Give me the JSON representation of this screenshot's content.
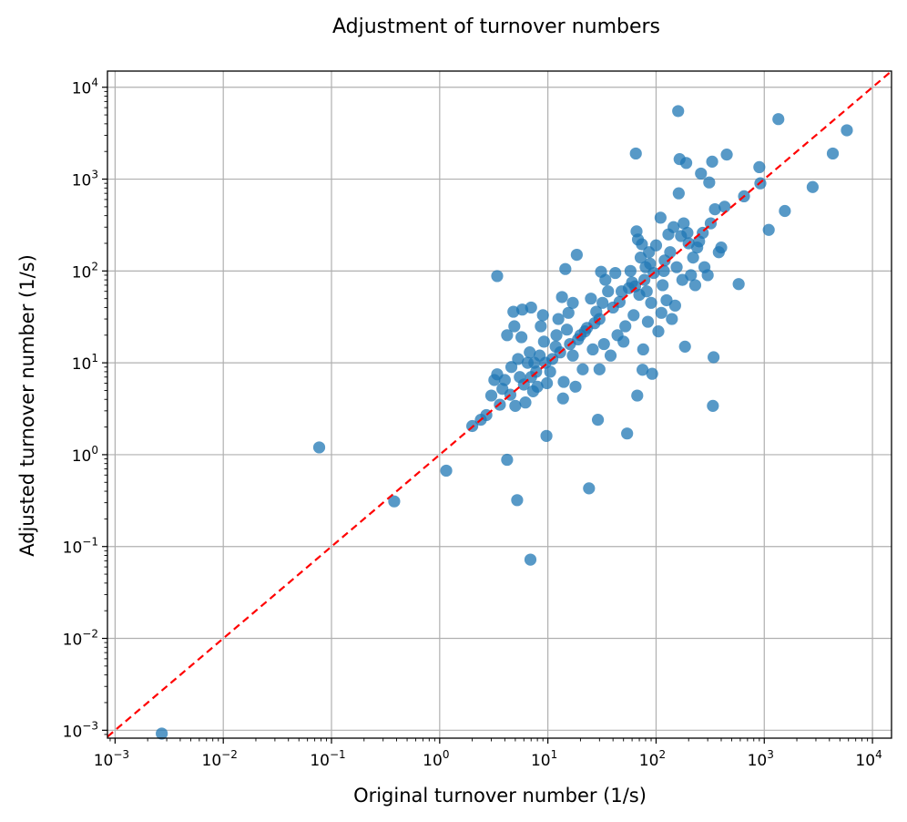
{
  "chart_data": {
    "type": "scatter",
    "title": "Adjustment of turnover numbers",
    "xlabel": "Original turnover number (1/s)",
    "ylabel": "Adjusted turnover number (1/s)",
    "xscale": "log",
    "yscale": "log",
    "xlim": [
      0.00085,
      15000
    ],
    "ylim": [
      0.00082,
      15000
    ],
    "x_ticks": [
      {
        "base": "10",
        "exp": "−3"
      },
      {
        "base": "10",
        "exp": "−2"
      },
      {
        "base": "10",
        "exp": "−1"
      },
      {
        "base": "10",
        "exp": "0"
      },
      {
        "base": "10",
        "exp": "1"
      },
      {
        "base": "10",
        "exp": "2"
      },
      {
        "base": "10",
        "exp": "3"
      },
      {
        "base": "10",
        "exp": "4"
      }
    ],
    "y_ticks": [
      {
        "base": "10",
        "exp": "−3"
      },
      {
        "base": "10",
        "exp": "−2"
      },
      {
        "base": "10",
        "exp": "−1"
      },
      {
        "base": "10",
        "exp": "0"
      },
      {
        "base": "10",
        "exp": "1"
      },
      {
        "base": "10",
        "exp": "2"
      },
      {
        "base": "10",
        "exp": "3"
      },
      {
        "base": "10",
        "exp": "4"
      }
    ],
    "grid": true,
    "marker_color": "#1f77b4",
    "reference_line": {
      "type": "y=x",
      "color": "#ff0000",
      "style": "dashed"
    },
    "points": [
      [
        0.0027,
        0.00092
      ],
      [
        0.077,
        1.2
      ],
      [
        0.38,
        0.31
      ],
      [
        1.15,
        0.67
      ],
      [
        2.0,
        2.05
      ],
      [
        2.4,
        2.4
      ],
      [
        2.7,
        2.7
      ],
      [
        3.0,
        4.4
      ],
      [
        3.2,
        6.5
      ],
      [
        3.4,
        88
      ],
      [
        3.4,
        7.5
      ],
      [
        3.6,
        3.5
      ],
      [
        3.8,
        5.2
      ],
      [
        4.0,
        6.5
      ],
      [
        4.2,
        20
      ],
      [
        4.2,
        0.88
      ],
      [
        4.5,
        4.5
      ],
      [
        4.6,
        9.0
      ],
      [
        4.8,
        36
      ],
      [
        4.9,
        25
      ],
      [
        5.0,
        3.4
      ],
      [
        5.2,
        0.32
      ],
      [
        5.3,
        11
      ],
      [
        5.5,
        7.0
      ],
      [
        5.7,
        19
      ],
      [
        5.8,
        38
      ],
      [
        6.0,
        5.8
      ],
      [
        6.2,
        3.7
      ],
      [
        6.5,
        10
      ],
      [
        6.8,
        13
      ],
      [
        6.9,
        0.072
      ],
      [
        7.0,
        40
      ],
      [
        7.0,
        7.0
      ],
      [
        7.3,
        4.9
      ],
      [
        7.5,
        10
      ],
      [
        7.8,
        8.0
      ],
      [
        8.0,
        5.5
      ],
      [
        8.4,
        12
      ],
      [
        8.6,
        25
      ],
      [
        9.0,
        33
      ],
      [
        9.2,
        17
      ],
      [
        9.5,
        10
      ],
      [
        9.7,
        1.6
      ],
      [
        9.8,
        6.0
      ],
      [
        10.5,
        8.0
      ],
      [
        11,
        11
      ],
      [
        11.8,
        15
      ],
      [
        12,
        20
      ],
      [
        12.5,
        30
      ],
      [
        13.0,
        13
      ],
      [
        13.5,
        52
      ],
      [
        13.8,
        4.1
      ],
      [
        14.0,
        6.2
      ],
      [
        14.5,
        105
      ],
      [
        15,
        23
      ],
      [
        15.5,
        35
      ],
      [
        16,
        16
      ],
      [
        17,
        45
      ],
      [
        17,
        12
      ],
      [
        18,
        5.5
      ],
      [
        18.5,
        150
      ],
      [
        19,
        18
      ],
      [
        20,
        20
      ],
      [
        21,
        8.5
      ],
      [
        22,
        22
      ],
      [
        23,
        24
      ],
      [
        24,
        0.43
      ],
      [
        25,
        50
      ],
      [
        26,
        14
      ],
      [
        27,
        27
      ],
      [
        28,
        36
      ],
      [
        29,
        2.4
      ],
      [
        30,
        30
      ],
      [
        30,
        8.5
      ],
      [
        31,
        98
      ],
      [
        32,
        45
      ],
      [
        33,
        16
      ],
      [
        34,
        80
      ],
      [
        36,
        60
      ],
      [
        38,
        12
      ],
      [
        40,
        40
      ],
      [
        42,
        95
      ],
      [
        44,
        20
      ],
      [
        46,
        46
      ],
      [
        48,
        60
      ],
      [
        50,
        17
      ],
      [
        52,
        25
      ],
      [
        54,
        1.7
      ],
      [
        56,
        65
      ],
      [
        58,
        100
      ],
      [
        60,
        75
      ],
      [
        62,
        33
      ],
      [
        64,
        68
      ],
      [
        65,
        1900
      ],
      [
        66,
        270
      ],
      [
        67,
        4.4
      ],
      [
        68,
        220
      ],
      [
        70,
        55
      ],
      [
        72,
        140
      ],
      [
        74,
        195
      ],
      [
        75,
        8.4
      ],
      [
        76,
        14
      ],
      [
        78,
        80
      ],
      [
        80,
        110
      ],
      [
        82,
        60
      ],
      [
        84,
        28
      ],
      [
        86,
        160
      ],
      [
        88,
        120
      ],
      [
        90,
        45
      ],
      [
        92,
        7.6
      ],
      [
        95,
        95
      ],
      [
        100,
        190
      ],
      [
        105,
        22
      ],
      [
        110,
        380
      ],
      [
        112,
        35
      ],
      [
        115,
        70
      ],
      [
        118,
        100
      ],
      [
        120,
        130
      ],
      [
        125,
        48
      ],
      [
        130,
        250
      ],
      [
        135,
        160
      ],
      [
        140,
        30
      ],
      [
        145,
        300
      ],
      [
        150,
        42
      ],
      [
        155,
        110
      ],
      [
        160,
        5500
      ],
      [
        162,
        700
      ],
      [
        165,
        1650
      ],
      [
        170,
        240
      ],
      [
        175,
        80
      ],
      [
        180,
        330
      ],
      [
        185,
        15
      ],
      [
        190,
        1500
      ],
      [
        195,
        260
      ],
      [
        200,
        200
      ],
      [
        210,
        90
      ],
      [
        220,
        140
      ],
      [
        230,
        70
      ],
      [
        240,
        180
      ],
      [
        250,
        210
      ],
      [
        260,
        1150
      ],
      [
        270,
        260
      ],
      [
        280,
        110
      ],
      [
        300,
        90
      ],
      [
        310,
        920
      ],
      [
        320,
        330
      ],
      [
        330,
        1550
      ],
      [
        335,
        3.4
      ],
      [
        340,
        11.5
      ],
      [
        350,
        470
      ],
      [
        380,
        160
      ],
      [
        400,
        180
      ],
      [
        430,
        500
      ],
      [
        450,
        1850
      ],
      [
        580,
        72
      ],
      [
        650,
        650
      ],
      [
        900,
        1350
      ],
      [
        920,
        900
      ],
      [
        1100,
        280
      ],
      [
        1350,
        4500
      ],
      [
        1550,
        450
      ],
      [
        2800,
        820
      ],
      [
        4300,
        1900
      ],
      [
        5800,
        3400
      ]
    ]
  }
}
